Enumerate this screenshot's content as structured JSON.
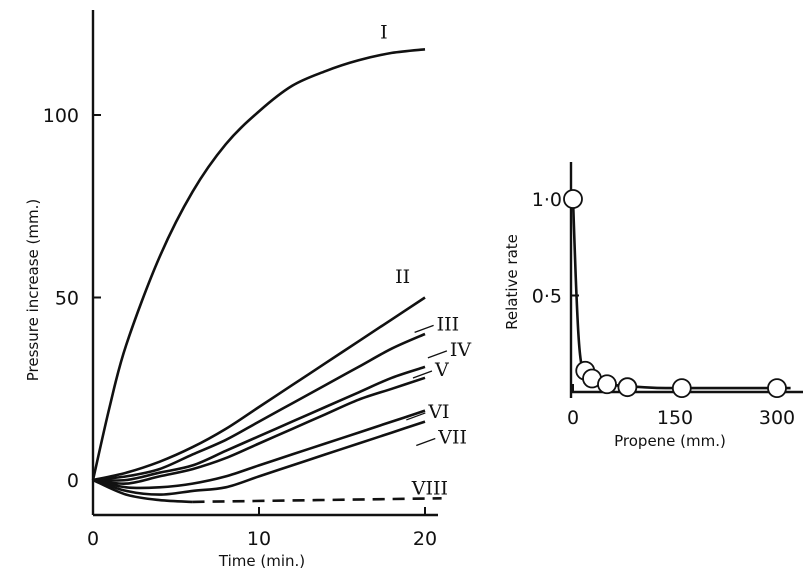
{
  "chart_data": [
    {
      "type": "line",
      "xlabel": "Time (min.)",
      "ylabel": "Pressure increase (mm.)",
      "xlim": [
        0,
        21
      ],
      "ylim": [
        -10,
        125
      ],
      "x_ticks": [
        0,
        10,
        20
      ],
      "x_tick_labels": [
        "0",
        "10",
        "20"
      ],
      "y_ticks": [
        0,
        50,
        100
      ],
      "y_tick_labels": [
        "0",
        "50",
        "100"
      ],
      "grid": false,
      "series": [
        {
          "name": "I",
          "x": [
            0,
            1,
            2,
            4,
            6,
            8,
            10,
            12,
            14,
            16,
            18,
            20
          ],
          "values": [
            0,
            20,
            37,
            61,
            79,
            92,
            101,
            108,
            112,
            115,
            117,
            118
          ],
          "style": "solid"
        },
        {
          "name": "II",
          "x": [
            0,
            2,
            4,
            6,
            8,
            10,
            12,
            14,
            16,
            18,
            20
          ],
          "values": [
            0,
            2,
            5,
            9,
            14,
            20,
            26,
            32,
            38,
            44,
            50
          ],
          "style": "solid"
        },
        {
          "name": "III",
          "x": [
            0,
            2,
            4,
            6,
            8,
            10,
            12,
            14,
            16,
            18,
            20
          ],
          "values": [
            0,
            1,
            3,
            7,
            11,
            16,
            21,
            26,
            31,
            36,
            40
          ],
          "style": "solid"
        },
        {
          "name": "IV",
          "x": [
            0,
            2,
            4,
            6,
            8,
            10,
            12,
            14,
            16,
            18,
            20
          ],
          "values": [
            0,
            0,
            2,
            4,
            8,
            12,
            16,
            20,
            24,
            28,
            31
          ],
          "style": "solid"
        },
        {
          "name": "V",
          "x": [
            0,
            2,
            4,
            6,
            8,
            10,
            12,
            14,
            16,
            18,
            20
          ],
          "values": [
            0,
            -1,
            1,
            3,
            6,
            10,
            14,
            18,
            22,
            25,
            28
          ],
          "style": "solid"
        },
        {
          "name": "VI",
          "x": [
            0,
            2,
            4,
            6,
            8,
            10,
            12,
            14,
            16,
            18,
            20
          ],
          "values": [
            0,
            -2,
            -2,
            -1,
            1,
            4,
            7,
            10,
            13,
            16,
            19
          ],
          "style": "solid"
        },
        {
          "name": "VII",
          "x": [
            0,
            2,
            4,
            6,
            8,
            10,
            12,
            14,
            16,
            18,
            20
          ],
          "values": [
            0,
            -3,
            -4,
            -3,
            -2,
            1,
            4,
            7,
            10,
            13,
            16
          ],
          "style": "solid"
        },
        {
          "name": "VIII",
          "x": [
            0,
            2,
            4,
            6
          ],
          "values": [
            0,
            -4,
            -5.5,
            -6
          ],
          "x_dashed": [
            6,
            21
          ],
          "values_dashed": [
            -6,
            -5
          ],
          "style": "solid-then-dashed"
        }
      ]
    },
    {
      "type": "scatter",
      "xlabel": "Propene (mm.)",
      "ylabel": "Relative rate",
      "xlim": [
        0,
        320
      ],
      "ylim": [
        0,
        1.1
      ],
      "x_ticks": [
        0,
        150,
        300
      ],
      "x_tick_labels": [
        "0",
        "150",
        "300"
      ],
      "y_ticks": [
        0,
        0.5,
        1.0
      ],
      "y_tick_labels": [
        "",
        "0·5",
        "1·0"
      ],
      "grid": false,
      "points": {
        "x": [
          0,
          18,
          28,
          50,
          80,
          160,
          300
        ],
        "y": [
          1.0,
          0.11,
          0.07,
          0.04,
          0.025,
          0.02,
          0.02
        ]
      },
      "curve": {
        "x": [
          0,
          4,
          8,
          12,
          18,
          28,
          50,
          80,
          120,
          160,
          220,
          300,
          320
        ],
        "y": [
          1.0,
          0.6,
          0.3,
          0.15,
          0.09,
          0.06,
          0.04,
          0.03,
          0.022,
          0.02,
          0.02,
          0.02,
          0.02
        ]
      }
    }
  ]
}
